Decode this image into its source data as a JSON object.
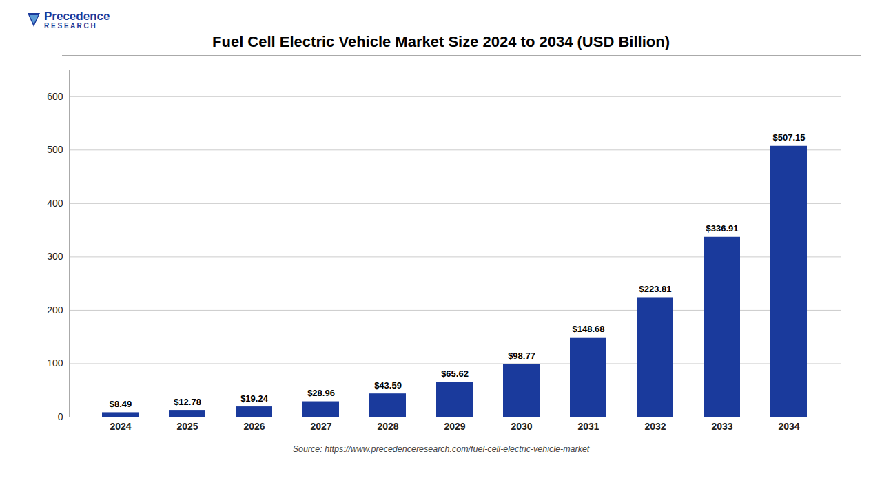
{
  "chart_data": {
    "type": "bar",
    "title": "Fuel Cell Electric Vehicle Market Size 2024 to 2034 (USD Billion)",
    "categories": [
      "2024",
      "2025",
      "2026",
      "2027",
      "2028",
      "2029",
      "2030",
      "2031",
      "2032",
      "2033",
      "2034"
    ],
    "values": [
      8.49,
      12.78,
      19.24,
      28.96,
      43.59,
      65.62,
      98.77,
      148.68,
      223.81,
      336.91,
      507.15
    ],
    "value_labels": [
      "$8.49",
      "$12.78",
      "$19.24",
      "$28.96",
      "$43.59",
      "$65.62",
      "$98.77",
      "$148.68",
      "$223.81",
      "$336.91",
      "$507.15"
    ],
    "data_labels": true,
    "color": "#1a3a9c",
    "ylim": [
      0,
      650
    ],
    "yticks": [
      0,
      100,
      200,
      300,
      400,
      500,
      600
    ],
    "grid": true,
    "annotations": [
      "Source: https://www.precedenceresearch.com/fuel-cell-electric-vehicle-market",
      "Precedence",
      "R E S E A R C H"
    ]
  }
}
